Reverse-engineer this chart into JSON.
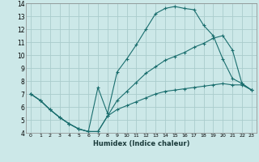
{
  "xlabel": "Humidex (Indice chaleur)",
  "background_color": "#cce8e8",
  "grid_color": "#aacccc",
  "line_color": "#1a6e6e",
  "xlim": [
    -0.5,
    23.5
  ],
  "ylim": [
    4,
    14
  ],
  "xticks": [
    0,
    1,
    2,
    3,
    4,
    5,
    6,
    7,
    8,
    9,
    10,
    11,
    12,
    13,
    14,
    15,
    16,
    17,
    18,
    19,
    20,
    21,
    22,
    23
  ],
  "yticks": [
    4,
    5,
    6,
    7,
    8,
    9,
    10,
    11,
    12,
    13,
    14
  ],
  "series1_x": [
    0,
    1,
    2,
    3,
    4,
    5,
    6,
    7,
    8,
    9,
    10,
    11,
    12,
    13,
    14,
    15,
    16,
    17,
    18,
    19,
    20,
    21,
    22,
    23
  ],
  "series1_y": [
    7.0,
    6.5,
    5.8,
    5.2,
    4.7,
    4.3,
    4.1,
    7.5,
    5.5,
    8.7,
    9.7,
    10.8,
    12.0,
    13.2,
    13.6,
    13.75,
    13.6,
    13.5,
    12.3,
    11.5,
    9.7,
    8.2,
    7.8,
    7.3
  ],
  "series2_x": [
    0,
    1,
    2,
    3,
    4,
    5,
    6,
    7,
    8,
    9,
    10,
    11,
    12,
    13,
    14,
    15,
    16,
    17,
    18,
    19,
    20,
    21,
    22,
    23
  ],
  "series2_y": [
    7.0,
    6.5,
    5.8,
    5.2,
    4.7,
    4.3,
    4.1,
    4.1,
    5.3,
    6.5,
    7.2,
    7.9,
    8.6,
    9.1,
    9.6,
    9.9,
    10.2,
    10.6,
    10.9,
    11.3,
    11.5,
    10.4,
    7.8,
    7.3
  ],
  "series3_x": [
    0,
    1,
    2,
    3,
    4,
    5,
    6,
    7,
    8,
    9,
    10,
    11,
    12,
    13,
    14,
    15,
    16,
    17,
    18,
    19,
    20,
    21,
    22,
    23
  ],
  "series3_y": [
    7.0,
    6.5,
    5.8,
    5.2,
    4.7,
    4.3,
    4.1,
    4.1,
    5.3,
    5.8,
    6.1,
    6.4,
    6.7,
    7.0,
    7.2,
    7.3,
    7.4,
    7.5,
    7.6,
    7.7,
    7.8,
    7.7,
    7.7,
    7.3
  ]
}
